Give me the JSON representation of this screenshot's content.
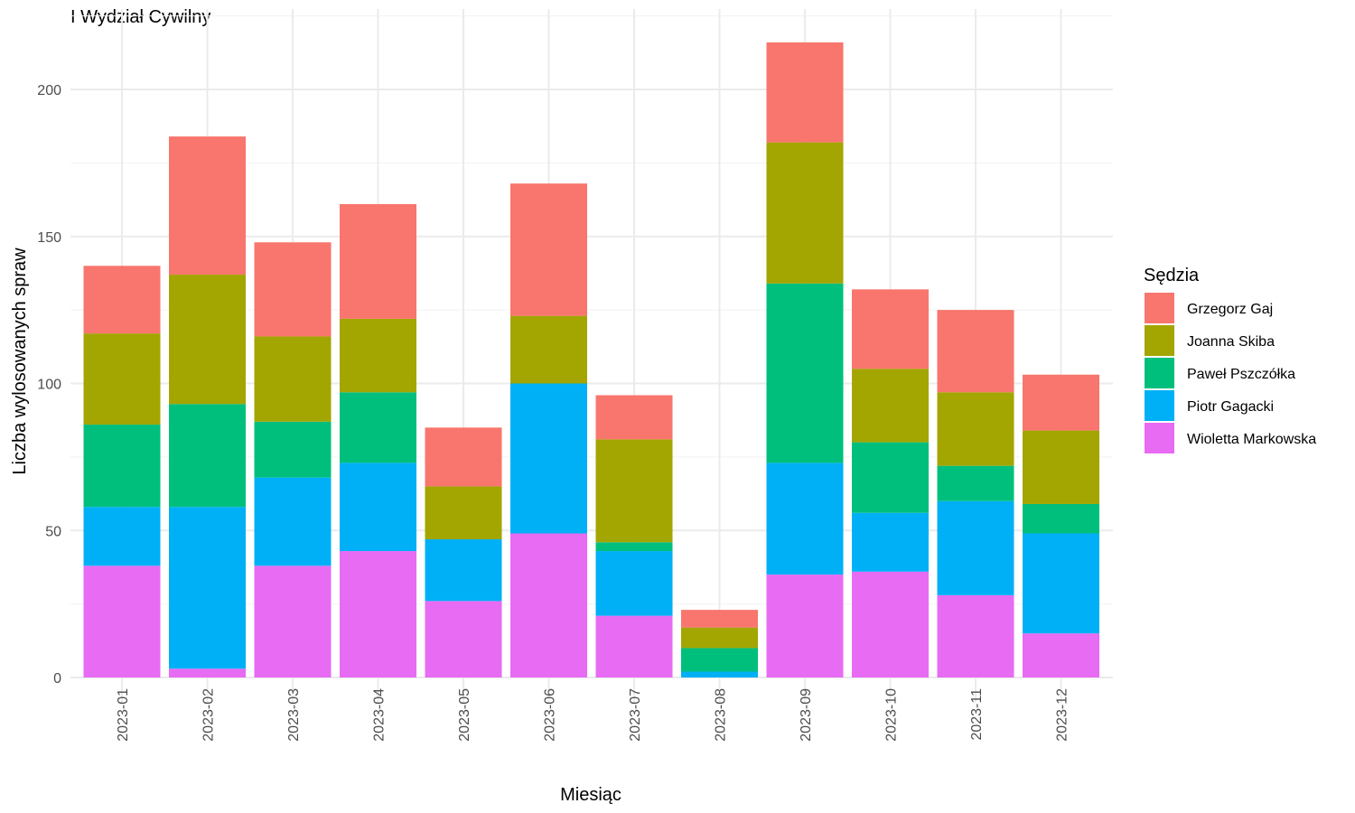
{
  "chart_data": {
    "type": "bar",
    "stacked": true,
    "title": "I Wydział Cywilny",
    "xlabel": "Miesiąc",
    "ylabel": "Liczba wylosowanych spraw",
    "ylim": [
      0,
      220
    ],
    "yticks": [
      0,
      50,
      100,
      150,
      200
    ],
    "grid": true,
    "legend_position": "right",
    "legend_title": "Sędzia",
    "categories": [
      "2023-01",
      "2023-02",
      "2023-03",
      "2023-04",
      "2023-05",
      "2023-06",
      "2023-07",
      "2023-08",
      "2023-09",
      "2023-10",
      "2023-11",
      "2023-12"
    ],
    "series": [
      {
        "name": "Wioletta Markowska",
        "color": "#E76BF3",
        "values": [
          38,
          3,
          38,
          43,
          26,
          49,
          21,
          0,
          35,
          36,
          28,
          15
        ]
      },
      {
        "name": "Piotr Gagacki",
        "color": "#00B0F6",
        "values": [
          20,
          55,
          30,
          30,
          21,
          51,
          22,
          2,
          38,
          20,
          32,
          34
        ]
      },
      {
        "name": "Paweł Pszczółka",
        "color": "#00BF7D",
        "values": [
          28,
          35,
          19,
          24,
          0,
          0,
          3,
          8,
          61,
          24,
          12,
          10
        ]
      },
      {
        "name": "Joanna Skiba",
        "color": "#A3A500",
        "values": [
          31,
          44,
          29,
          25,
          18,
          23,
          35,
          7,
          48,
          25,
          25,
          25
        ]
      },
      {
        "name": "Grzegorz Gaj",
        "color": "#F8766D",
        "values": [
          23,
          47,
          32,
          39,
          20,
          45,
          15,
          6,
          34,
          27,
          28,
          19
        ]
      }
    ],
    "legend_order": [
      "Grzegorz Gaj",
      "Joanna Skiba",
      "Paweł Pszczółka",
      "Piotr Gagacki",
      "Wioletta Markowska"
    ]
  }
}
